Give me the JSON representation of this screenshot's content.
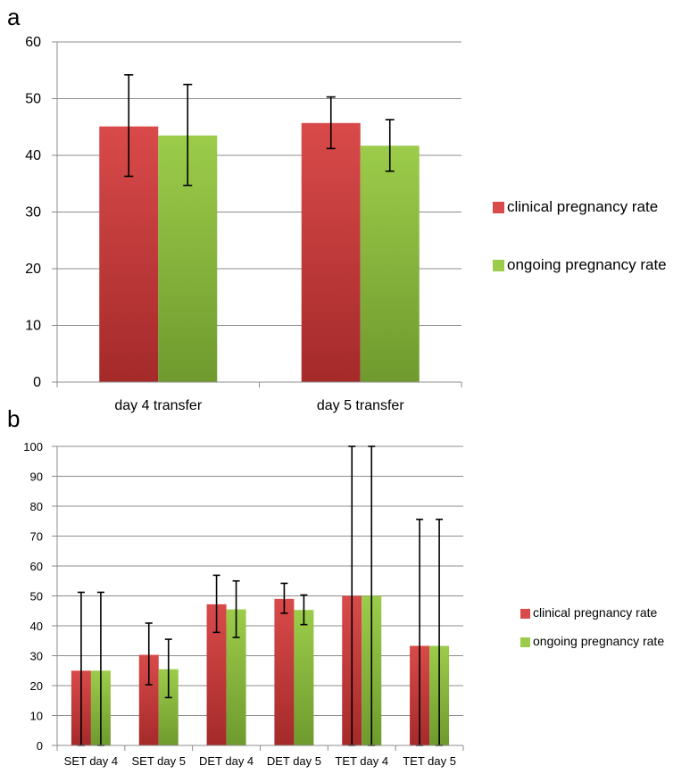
{
  "colors": {
    "clinical_top": "#d94a4a",
    "clinical_bottom": "#a52a2a",
    "ongoing_top": "#9ccc4a",
    "ongoing_bottom": "#6f9a2e",
    "grid": "#8c8c8c",
    "error_bar": "#000000"
  },
  "chart_data": [
    {
      "panel": "a",
      "type": "bar",
      "categories": [
        "day 4 transfer",
        "day 5 transfer"
      ],
      "series": [
        {
          "name": "clinical pregnancy rate",
          "values": [
            45.1,
            45.7
          ],
          "err_low": [
            36.3,
            41.2
          ],
          "err_high": [
            54.2,
            50.3
          ]
        },
        {
          "name": "ongoing pregnancy rate",
          "values": [
            43.5,
            41.7
          ],
          "err_low": [
            34.7,
            37.2
          ],
          "err_high": [
            52.5,
            46.3
          ]
        }
      ],
      "yticks": [
        0,
        10,
        20,
        30,
        40,
        50,
        60
      ],
      "ylim": [
        0,
        60
      ],
      "grid": true,
      "legend": "right"
    },
    {
      "panel": "b",
      "type": "bar",
      "categories": [
        "SET day 4",
        "SET day 5",
        "DET day 4",
        "DET day 5",
        "TET day 4",
        "TET day 5"
      ],
      "series": [
        {
          "name": "clinical pregnancy rate",
          "values": [
            25,
            30.3,
            47.2,
            49,
            50,
            33.3
          ],
          "err_low": [
            0,
            20.3,
            37.8,
            44.2,
            0,
            0
          ],
          "err_high": [
            51.2,
            40.9,
            56.9,
            54.2,
            100,
            75.6
          ]
        },
        {
          "name": "ongoing pregnancy rate",
          "values": [
            25,
            25.5,
            45.5,
            45.3,
            50,
            33.3
          ],
          "err_low": [
            0,
            16,
            36.1,
            40.4,
            0,
            0
          ],
          "err_high": [
            51.2,
            35.5,
            55,
            50.3,
            100,
            75.6
          ]
        }
      ],
      "yticks": [
        0,
        10,
        20,
        30,
        40,
        50,
        60,
        70,
        80,
        90,
        100
      ],
      "ylim": [
        0,
        100
      ],
      "grid": true,
      "legend": "right"
    }
  ]
}
